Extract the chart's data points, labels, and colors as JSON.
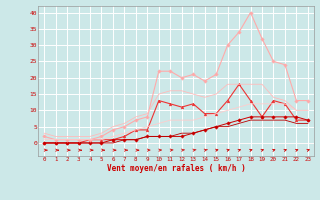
{
  "x": [
    0,
    1,
    2,
    3,
    4,
    5,
    6,
    7,
    8,
    9,
    10,
    11,
    12,
    13,
    14,
    15,
    16,
    17,
    18,
    19,
    20,
    21,
    22,
    23
  ],
  "series": [
    {
      "color": "#ee3333",
      "marker": "^",
      "markersize": 2.0,
      "linewidth": 0.8,
      "y": [
        0,
        0,
        0,
        0,
        1,
        1,
        1,
        2,
        4,
        4,
        13,
        12,
        11,
        12,
        9,
        9,
        13,
        18,
        13,
        8,
        13,
        12,
        7,
        7
      ]
    },
    {
      "color": "#cc0000",
      "marker": "D",
      "markersize": 1.8,
      "linewidth": 0.7,
      "y": [
        0,
        0,
        0,
        0,
        0,
        0,
        1,
        1,
        1,
        2,
        2,
        2,
        2,
        3,
        4,
        5,
        6,
        7,
        8,
        8,
        8,
        8,
        8,
        7
      ]
    },
    {
      "color": "#bb0000",
      "marker": null,
      "markersize": 0,
      "linewidth": 0.6,
      "y": [
        0,
        0,
        0,
        0,
        0,
        0,
        0,
        1,
        1,
        2,
        2,
        2,
        3,
        3,
        4,
        5,
        5,
        6,
        7,
        7,
        7,
        7,
        6,
        6
      ]
    },
    {
      "color": "#ffaaaa",
      "marker": "D",
      "markersize": 1.8,
      "linewidth": 0.8,
      "y": [
        2,
        1,
        1,
        1,
        1,
        2,
        4,
        5,
        7,
        8,
        22,
        22,
        20,
        21,
        19,
        21,
        30,
        34,
        40,
        32,
        25,
        24,
        13,
        13
      ]
    },
    {
      "color": "#ffbbbb",
      "marker": null,
      "markersize": 0,
      "linewidth": 0.6,
      "y": [
        3,
        2,
        2,
        2,
        2,
        3,
        5,
        6,
        8,
        9,
        15,
        16,
        16,
        15,
        14,
        15,
        18,
        18,
        18,
        18,
        14,
        13,
        10,
        10
      ]
    },
    {
      "color": "#ffcccc",
      "marker": null,
      "markersize": 0,
      "linewidth": 0.6,
      "y": [
        1,
        1,
        1,
        1,
        1,
        1,
        2,
        3,
        4,
        5,
        6,
        7,
        7,
        7,
        8,
        9,
        10,
        11,
        12,
        12,
        12,
        12,
        10,
        10
      ]
    }
  ],
  "xlabel": "Vent moyen/en rafales ( km/h )",
  "xlim": [
    -0.5,
    23.5
  ],
  "ylim": [
    -4,
    42
  ],
  "yticks": [
    0,
    5,
    10,
    15,
    20,
    25,
    30,
    35,
    40
  ],
  "xticks": [
    0,
    1,
    2,
    3,
    4,
    5,
    6,
    7,
    8,
    9,
    10,
    11,
    12,
    13,
    14,
    15,
    16,
    17,
    18,
    19,
    20,
    21,
    22,
    23
  ],
  "background_color": "#cce8e8",
  "grid_color": "#ffffff",
  "tick_color": "#cc0000",
  "label_color": "#cc0000",
  "arrow_color": "#cc0000",
  "figsize": [
    3.2,
    2.0
  ],
  "dpi": 100
}
